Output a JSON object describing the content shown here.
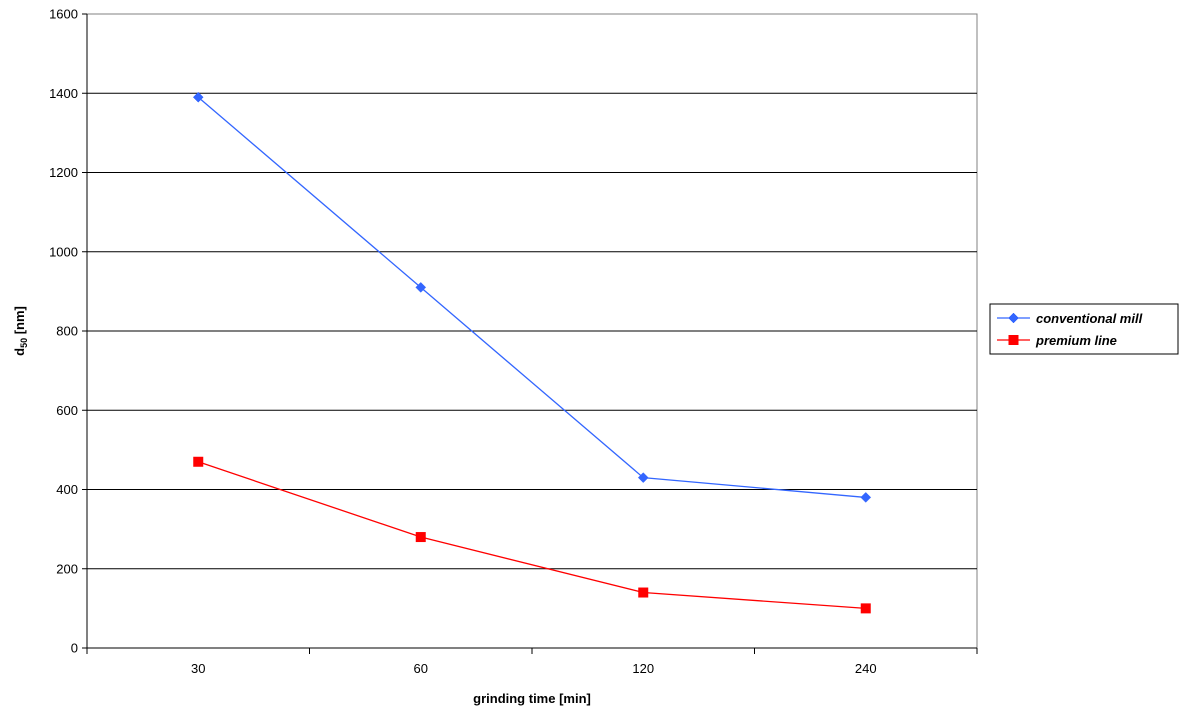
{
  "chart_data": {
    "type": "line",
    "categories": [
      "30",
      "60",
      "120",
      "240"
    ],
    "xlabel": "grinding time [min]",
    "ylabel_main": "d",
    "ylabel_sub": "50",
    "ylabel_unit": " [nm]",
    "ylim": [
      0,
      1600
    ],
    "yticks": [
      0,
      200,
      400,
      600,
      800,
      1000,
      1200,
      1400,
      1600
    ],
    "grid": true,
    "legend_position": "right",
    "series": [
      {
        "name": "conventional mill",
        "values": [
          1390,
          910,
          430,
          380
        ],
        "color": "#3366ff",
        "marker": "diamond"
      },
      {
        "name": "premium line",
        "values": [
          470,
          280,
          140,
          100
        ],
        "color": "#ff0000",
        "marker": "square"
      }
    ]
  }
}
